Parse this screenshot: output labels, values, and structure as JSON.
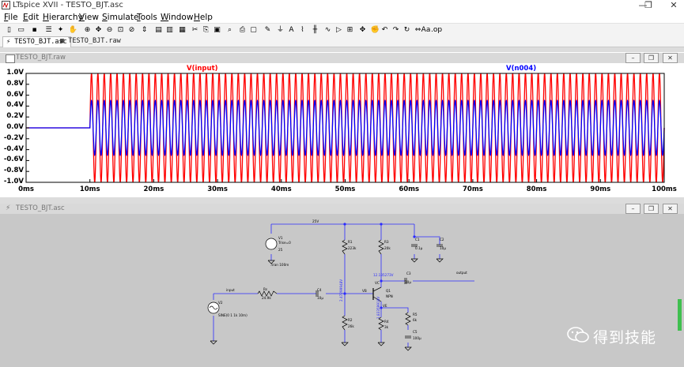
{
  "window": {
    "title": "LTspice XVII - TESTO_BJT.asc",
    "minimize": "—",
    "restore": "❐",
    "close": "✕"
  },
  "menu": {
    "items": [
      {
        "u": "F",
        "rest": "ile"
      },
      {
        "u": "E",
        "rest": "dit"
      },
      {
        "u": "H",
        "rest": "ierarchy"
      },
      {
        "u": "V",
        "rest": "iew"
      },
      {
        "u": "S",
        "rest": "imulate"
      },
      {
        "u": "T",
        "rest": "ools"
      },
      {
        "u": "W",
        "rest": "indow"
      },
      {
        "u": "H",
        "rest": "elp"
      }
    ]
  },
  "toolbar": {
    "icons": [
      "new-schematic-icon",
      "open-icon",
      "save-icon",
      "control-panel-icon",
      "run-icon",
      "halt-icon",
      "zoom-in-icon",
      "pan-icon",
      "zoom-out-icon",
      "zoom-fit-icon",
      "cancel-zoom-icon",
      "autorange-icon",
      "tile-horizontal-icon",
      "tile-vertical-icon",
      "cascade-icon",
      "cut-icon",
      "copy-icon",
      "paste-icon",
      "find-icon",
      "print-icon",
      "print-preview-icon",
      "wire-icon",
      "ground-icon",
      "label-icon",
      "resistor-icon",
      "capacitor-icon",
      "inductor-icon",
      "diode-icon",
      "component-icon",
      "move-icon",
      "drag-icon",
      "undo-icon",
      "redo-icon",
      "rotate-icon",
      "mirror-icon",
      "text-icon",
      "spice-directive-icon"
    ]
  },
  "tabs": [
    {
      "label": "TESTO_BJT.asc",
      "active": true
    },
    {
      "label": "TESTO_BJT.raw",
      "active": false
    }
  ],
  "plot": {
    "title": "TESTO_BJT.raw",
    "traces": [
      {
        "name": "V(input)",
        "color": "#ff0000",
        "amplitude": 1.0
      },
      {
        "name": "V(n004)",
        "color": "#0000ff",
        "amplitude": 0.5
      }
    ]
  },
  "chart_data": {
    "type": "line",
    "title": "",
    "xlabel": "",
    "ylabel": "",
    "x_unit": "ms",
    "xlim": [
      0,
      100
    ],
    "ylim": [
      -1.0,
      1.0
    ],
    "x_ticks": [
      "0ms",
      "10ms",
      "20ms",
      "30ms",
      "40ms",
      "50ms",
      "60ms",
      "70ms",
      "80ms",
      "90ms",
      "100ms"
    ],
    "y_ticks": [
      "1.0V",
      "0.8V",
      "0.6V",
      "0.4V",
      "0.2V",
      "0.0V",
      "-0.2V",
      "-0.4V",
      "-0.6V",
      "-0.8V",
      "-1.0V"
    ],
    "series": [
      {
        "name": "V(input)",
        "shape": "sine",
        "frequency_hz": 1000,
        "amplitude_v": 1.0,
        "offset_v": 0,
        "start_ms": 10,
        "before_start_v": 0
      },
      {
        "name": "V(n004)",
        "shape": "sine",
        "frequency_hz": 1000,
        "amplitude_v": 0.5,
        "offset_v": 0,
        "start_ms": 10,
        "before_start_v": 0
      }
    ],
    "grid": false,
    "legend": "top-labels"
  },
  "schematic": {
    "title": "TESTO_BJT.asc",
    "labels": {
      "v25_top": "25V",
      "v1": "V1",
      "v1_trise": "Trise=0",
      "v1_val": "25",
      "tran": ".tran 100m",
      "r1": "R1",
      "r1_val": "223k",
      "r2": "R2",
      "r2_val": "26k",
      "r3": "R3",
      "r3_val": "20k",
      "r4": "R4",
      "r4_val": "3k",
      "r5": "R5",
      "r5_val": "6k",
      "c1": "C1",
      "c1_val": "0.1µ",
      "c2": "C2",
      "c2_val": "10µ",
      "c3": "C3",
      "c3_val": "10µ",
      "c4": "C4",
      "c4_val": "10µ",
      "c5": "C5",
      "c5_val": "100µ",
      "rs": "Rs",
      "rs_val": "24.9k",
      "v2": "V2",
      "v2_val": "SINE(0 1 1k 10m)",
      "q1": "Q1",
      "q1_val": "NPN",
      "vc_node": "12.135273V",
      "vb_node": "2.47299948V",
      "ve_node": "1.83359918V",
      "vc": "VC",
      "vb": "VB",
      "ve": "VE",
      "input": "input",
      "output": "output"
    }
  },
  "watermark": {
    "text": "得到技能",
    "icon": "wechat-icon"
  }
}
